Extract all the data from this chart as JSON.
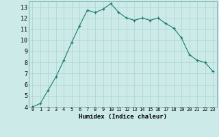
{
  "x": [
    0,
    1,
    2,
    3,
    4,
    5,
    6,
    7,
    8,
    9,
    10,
    11,
    12,
    13,
    14,
    15,
    16,
    17,
    18,
    19,
    20,
    21,
    22,
    23
  ],
  "y": [
    4.0,
    4.3,
    5.5,
    6.7,
    8.2,
    9.8,
    11.3,
    12.7,
    12.5,
    12.8,
    13.3,
    12.5,
    12.0,
    11.8,
    12.0,
    11.8,
    12.0,
    11.5,
    11.1,
    10.2,
    8.7,
    8.2,
    8.0,
    7.2
  ],
  "line_color": "#1a7a6e",
  "marker_color": "#1a7a6e",
  "bg_color": "#cceae8",
  "grid_color": "#aad4d0",
  "xlabel": "Humidex (Indice chaleur)",
  "ylim": [
    4,
    13.5
  ],
  "xlim": [
    -0.5,
    23.5
  ],
  "yticks": [
    4,
    5,
    6,
    7,
    8,
    9,
    10,
    11,
    12,
    13
  ],
  "xticks": [
    0,
    1,
    2,
    3,
    4,
    5,
    6,
    7,
    8,
    9,
    10,
    11,
    12,
    13,
    14,
    15,
    16,
    17,
    18,
    19,
    20,
    21,
    22,
    23
  ]
}
